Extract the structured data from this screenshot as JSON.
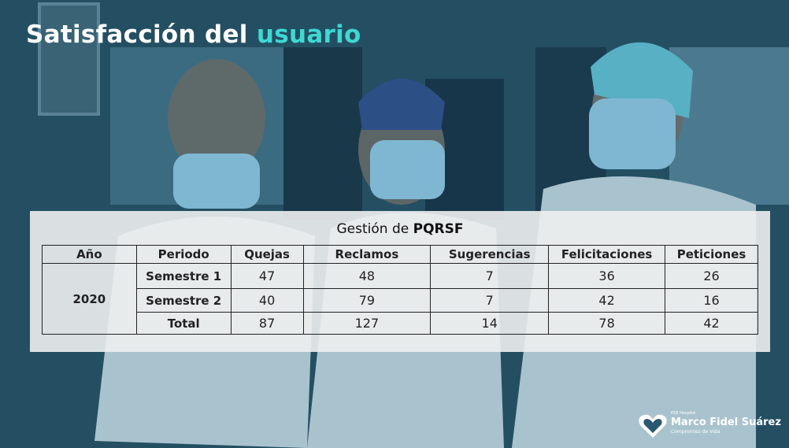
{
  "header": {
    "title": "Satisfacción del",
    "title_highlight": "usuario"
  },
  "table": {
    "title": "Gestión de",
    "title_bold": "PQRSF",
    "columns": [
      "Año",
      "Periodo",
      "Quejas",
      "Reclamos",
      "Sugerencias",
      "Felicitaciones",
      "Peticiones"
    ],
    "year": "2020",
    "rows": [
      [
        "Semestre 1",
        47,
        48,
        7,
        36,
        26
      ],
      [
        "Semestre 2",
        40,
        79,
        7,
        42,
        16
      ],
      [
        "Total",
        87,
        127,
        14,
        78,
        42
      ]
    ]
  },
  "logo": {
    "top": "ESE Hospital",
    "name": "Marco Fidel Suárez",
    "tagline": "Compromiso de Vida"
  }
}
